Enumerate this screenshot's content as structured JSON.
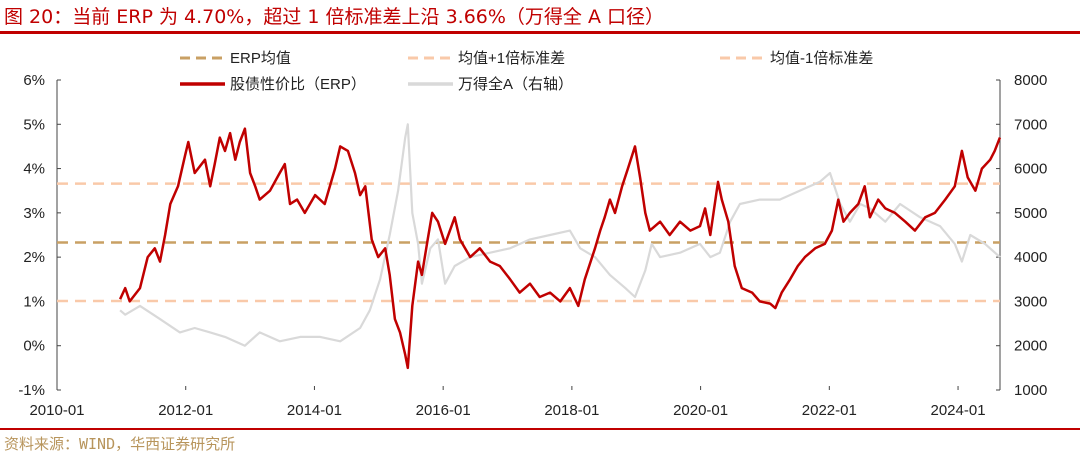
{
  "title": "图 20：当前 ERP 为 4.70%，超过 1 倍标准差上沿 3.66%（万得全 A 口径）",
  "source": "资料来源：WIND，华西证券研究所",
  "colors": {
    "title": "#c00000",
    "erp": "#c00000",
    "index": "#d9d9d9",
    "mean": "#c9a064",
    "sd": "#f9c9a9",
    "source": "#b8955c"
  },
  "chart_data": {
    "type": "line",
    "title": "",
    "x_ticks": [
      "2010-01",
      "2012-01",
      "2014-01",
      "2016-01",
      "2018-01",
      "2020-01",
      "2022-01",
      "2024-01"
    ],
    "xlim": [
      2010.0,
      2024.65
    ],
    "y_left": {
      "ticks": [
        "-1%",
        "0%",
        "1%",
        "2%",
        "3%",
        "4%",
        "5%",
        "6%"
      ],
      "ylim": [
        -1,
        6
      ],
      "unit": "%"
    },
    "y_right": {
      "ticks": [
        "1000",
        "2000",
        "3000",
        "4000",
        "5000",
        "6000",
        "7000",
        "8000"
      ],
      "ylim": [
        1000,
        8000
      ]
    },
    "grid": false,
    "legend": {
      "placement": "top",
      "entries": [
        {
          "label": "ERP均值",
          "style": "dashed",
          "color": "#c9a064"
        },
        {
          "label": "均值+1倍标准差",
          "style": "dashed",
          "color": "#f9c9a9"
        },
        {
          "label": "均值-1倍标准差",
          "style": "dashed",
          "color": "#f9c9a9"
        },
        {
          "label": "股债性价比（ERP）",
          "style": "solid",
          "color": "#c00000"
        },
        {
          "label": "万得全A（右轴）",
          "style": "solid",
          "color": "#d9d9d9"
        }
      ]
    },
    "reference_lines": {
      "mean": 2.33,
      "plus_1sd": 3.66,
      "minus_1sd": 1.01
    },
    "series": [
      {
        "name": "股债性价比（ERP）",
        "axis": "left",
        "points": [
          [
            2010.98,
            1.05
          ],
          [
            2011.06,
            1.3
          ],
          [
            2011.13,
            1.0
          ],
          [
            2011.29,
            1.3
          ],
          [
            2011.41,
            2.0
          ],
          [
            2011.52,
            2.2
          ],
          [
            2011.6,
            1.9
          ],
          [
            2011.68,
            2.5
          ],
          [
            2011.76,
            3.2
          ],
          [
            2011.88,
            3.6
          ],
          [
            2011.99,
            4.3
          ],
          [
            2012.04,
            4.6
          ],
          [
            2012.14,
            3.9
          ],
          [
            2012.3,
            4.2
          ],
          [
            2012.38,
            3.6
          ],
          [
            2012.45,
            4.1
          ],
          [
            2012.53,
            4.7
          ],
          [
            2012.61,
            4.4
          ],
          [
            2012.69,
            4.8
          ],
          [
            2012.77,
            4.2
          ],
          [
            2012.84,
            4.6
          ],
          [
            2012.92,
            4.9
          ],
          [
            2013.0,
            3.9
          ],
          [
            2013.08,
            3.6
          ],
          [
            2013.15,
            3.3
          ],
          [
            2013.31,
            3.5
          ],
          [
            2013.46,
            3.9
          ],
          [
            2013.54,
            4.1
          ],
          [
            2013.62,
            3.2
          ],
          [
            2013.73,
            3.3
          ],
          [
            2013.85,
            3.0
          ],
          [
            2014.01,
            3.4
          ],
          [
            2014.16,
            3.2
          ],
          [
            2014.32,
            4.0
          ],
          [
            2014.4,
            4.5
          ],
          [
            2014.52,
            4.4
          ],
          [
            2014.63,
            3.9
          ],
          [
            2014.71,
            3.4
          ],
          [
            2014.79,
            3.6
          ],
          [
            2014.89,
            2.4
          ],
          [
            2014.99,
            2.0
          ],
          [
            2015.1,
            2.2
          ],
          [
            2015.17,
            1.6
          ],
          [
            2015.25,
            0.6
          ],
          [
            2015.33,
            0.3
          ],
          [
            2015.41,
            -0.2
          ],
          [
            2015.45,
            -0.5
          ],
          [
            2015.52,
            0.9
          ],
          [
            2015.61,
            1.9
          ],
          [
            2015.67,
            1.6
          ],
          [
            2015.76,
            2.4
          ],
          [
            2015.83,
            3.0
          ],
          [
            2015.92,
            2.8
          ],
          [
            2016.03,
            2.3
          ],
          [
            2016.18,
            2.9
          ],
          [
            2016.26,
            2.4
          ],
          [
            2016.42,
            2.0
          ],
          [
            2016.57,
            2.2
          ],
          [
            2016.73,
            1.9
          ],
          [
            2016.88,
            1.8
          ],
          [
            2017.04,
            1.5
          ],
          [
            2017.19,
            1.2
          ],
          [
            2017.35,
            1.4
          ],
          [
            2017.5,
            1.1
          ],
          [
            2017.66,
            1.2
          ],
          [
            2017.82,
            1.0
          ],
          [
            2017.97,
            1.3
          ],
          [
            2018.1,
            0.9
          ],
          [
            2018.2,
            1.5
          ],
          [
            2018.36,
            2.2
          ],
          [
            2018.44,
            2.6
          ],
          [
            2018.51,
            2.9
          ],
          [
            2018.59,
            3.3
          ],
          [
            2018.67,
            3.0
          ],
          [
            2018.78,
            3.6
          ],
          [
            2018.87,
            4.0
          ],
          [
            2018.98,
            4.5
          ],
          [
            2019.06,
            3.8
          ],
          [
            2019.14,
            3.0
          ],
          [
            2019.21,
            2.6
          ],
          [
            2019.37,
            2.8
          ],
          [
            2019.52,
            2.5
          ],
          [
            2019.68,
            2.8
          ],
          [
            2019.84,
            2.6
          ],
          [
            2019.99,
            2.7
          ],
          [
            2020.07,
            3.1
          ],
          [
            2020.15,
            2.5
          ],
          [
            2020.27,
            3.7
          ],
          [
            2020.33,
            3.3
          ],
          [
            2020.43,
            2.8
          ],
          [
            2020.53,
            1.8
          ],
          [
            2020.64,
            1.3
          ],
          [
            2020.8,
            1.2
          ],
          [
            2020.92,
            1.0
          ],
          [
            2021.08,
            0.95
          ],
          [
            2021.16,
            0.85
          ],
          [
            2021.26,
            1.2
          ],
          [
            2021.39,
            1.5
          ],
          [
            2021.51,
            1.8
          ],
          [
            2021.62,
            2.0
          ],
          [
            2021.78,
            2.2
          ],
          [
            2021.93,
            2.3
          ],
          [
            2022.04,
            2.6
          ],
          [
            2022.14,
            3.3
          ],
          [
            2022.22,
            2.8
          ],
          [
            2022.32,
            3.0
          ],
          [
            2022.45,
            3.2
          ],
          [
            2022.55,
            3.6
          ],
          [
            2022.63,
            2.9
          ],
          [
            2022.76,
            3.3
          ],
          [
            2022.87,
            3.1
          ],
          [
            2023.02,
            3.0
          ],
          [
            2023.18,
            2.8
          ],
          [
            2023.33,
            2.6
          ],
          [
            2023.49,
            2.9
          ],
          [
            2023.64,
            3.0
          ],
          [
            2023.8,
            3.3
          ],
          [
            2023.95,
            3.6
          ],
          [
            2024.06,
            4.4
          ],
          [
            2024.15,
            3.8
          ],
          [
            2024.27,
            3.5
          ],
          [
            2024.37,
            4.0
          ],
          [
            2024.5,
            4.2
          ],
          [
            2024.57,
            4.4
          ],
          [
            2024.65,
            4.7
          ]
        ]
      },
      {
        "name": "万得全A（右轴）",
        "axis": "right",
        "points": [
          [
            2010.98,
            2800
          ],
          [
            2011.06,
            2700
          ],
          [
            2011.29,
            2900
          ],
          [
            2011.6,
            2600
          ],
          [
            2011.91,
            2300
          ],
          [
            2012.14,
            2400
          ],
          [
            2012.38,
            2300
          ],
          [
            2012.61,
            2200
          ],
          [
            2012.92,
            2000
          ],
          [
            2013.15,
            2300
          ],
          [
            2013.46,
            2100
          ],
          [
            2013.78,
            2200
          ],
          [
            2014.09,
            2200
          ],
          [
            2014.4,
            2100
          ],
          [
            2014.71,
            2400
          ],
          [
            2014.86,
            2800
          ],
          [
            2015.02,
            3500
          ],
          [
            2015.17,
            4500
          ],
          [
            2015.3,
            5500
          ],
          [
            2015.41,
            6700
          ],
          [
            2015.45,
            7000
          ],
          [
            2015.52,
            5000
          ],
          [
            2015.61,
            4300
          ],
          [
            2015.67,
            3400
          ],
          [
            2015.8,
            4200
          ],
          [
            2015.92,
            4400
          ],
          [
            2016.03,
            3400
          ],
          [
            2016.18,
            3800
          ],
          [
            2016.42,
            4000
          ],
          [
            2016.73,
            4100
          ],
          [
            2017.04,
            4200
          ],
          [
            2017.35,
            4400
          ],
          [
            2017.66,
            4500
          ],
          [
            2017.97,
            4600
          ],
          [
            2018.13,
            4200
          ],
          [
            2018.36,
            4000
          ],
          [
            2018.59,
            3600
          ],
          [
            2018.83,
            3300
          ],
          [
            2018.98,
            3100
          ],
          [
            2019.14,
            3700
          ],
          [
            2019.24,
            4300
          ],
          [
            2019.37,
            4000
          ],
          [
            2019.68,
            4100
          ],
          [
            2019.99,
            4300
          ],
          [
            2020.15,
            4000
          ],
          [
            2020.3,
            4100
          ],
          [
            2020.46,
            4800
          ],
          [
            2020.61,
            5200
          ],
          [
            2020.92,
            5300
          ],
          [
            2021.23,
            5300
          ],
          [
            2021.54,
            5500
          ],
          [
            2021.85,
            5700
          ],
          [
            2022.01,
            5900
          ],
          [
            2022.17,
            5200
          ],
          [
            2022.32,
            4800
          ],
          [
            2022.48,
            5200
          ],
          [
            2022.63,
            5100
          ],
          [
            2022.87,
            4800
          ],
          [
            2023.1,
            5200
          ],
          [
            2023.41,
            4900
          ],
          [
            2023.72,
            4700
          ],
          [
            2023.95,
            4300
          ],
          [
            2024.06,
            3900
          ],
          [
            2024.19,
            4500
          ],
          [
            2024.42,
            4300
          ],
          [
            2024.65,
            4000
          ]
        ]
      }
    ]
  }
}
